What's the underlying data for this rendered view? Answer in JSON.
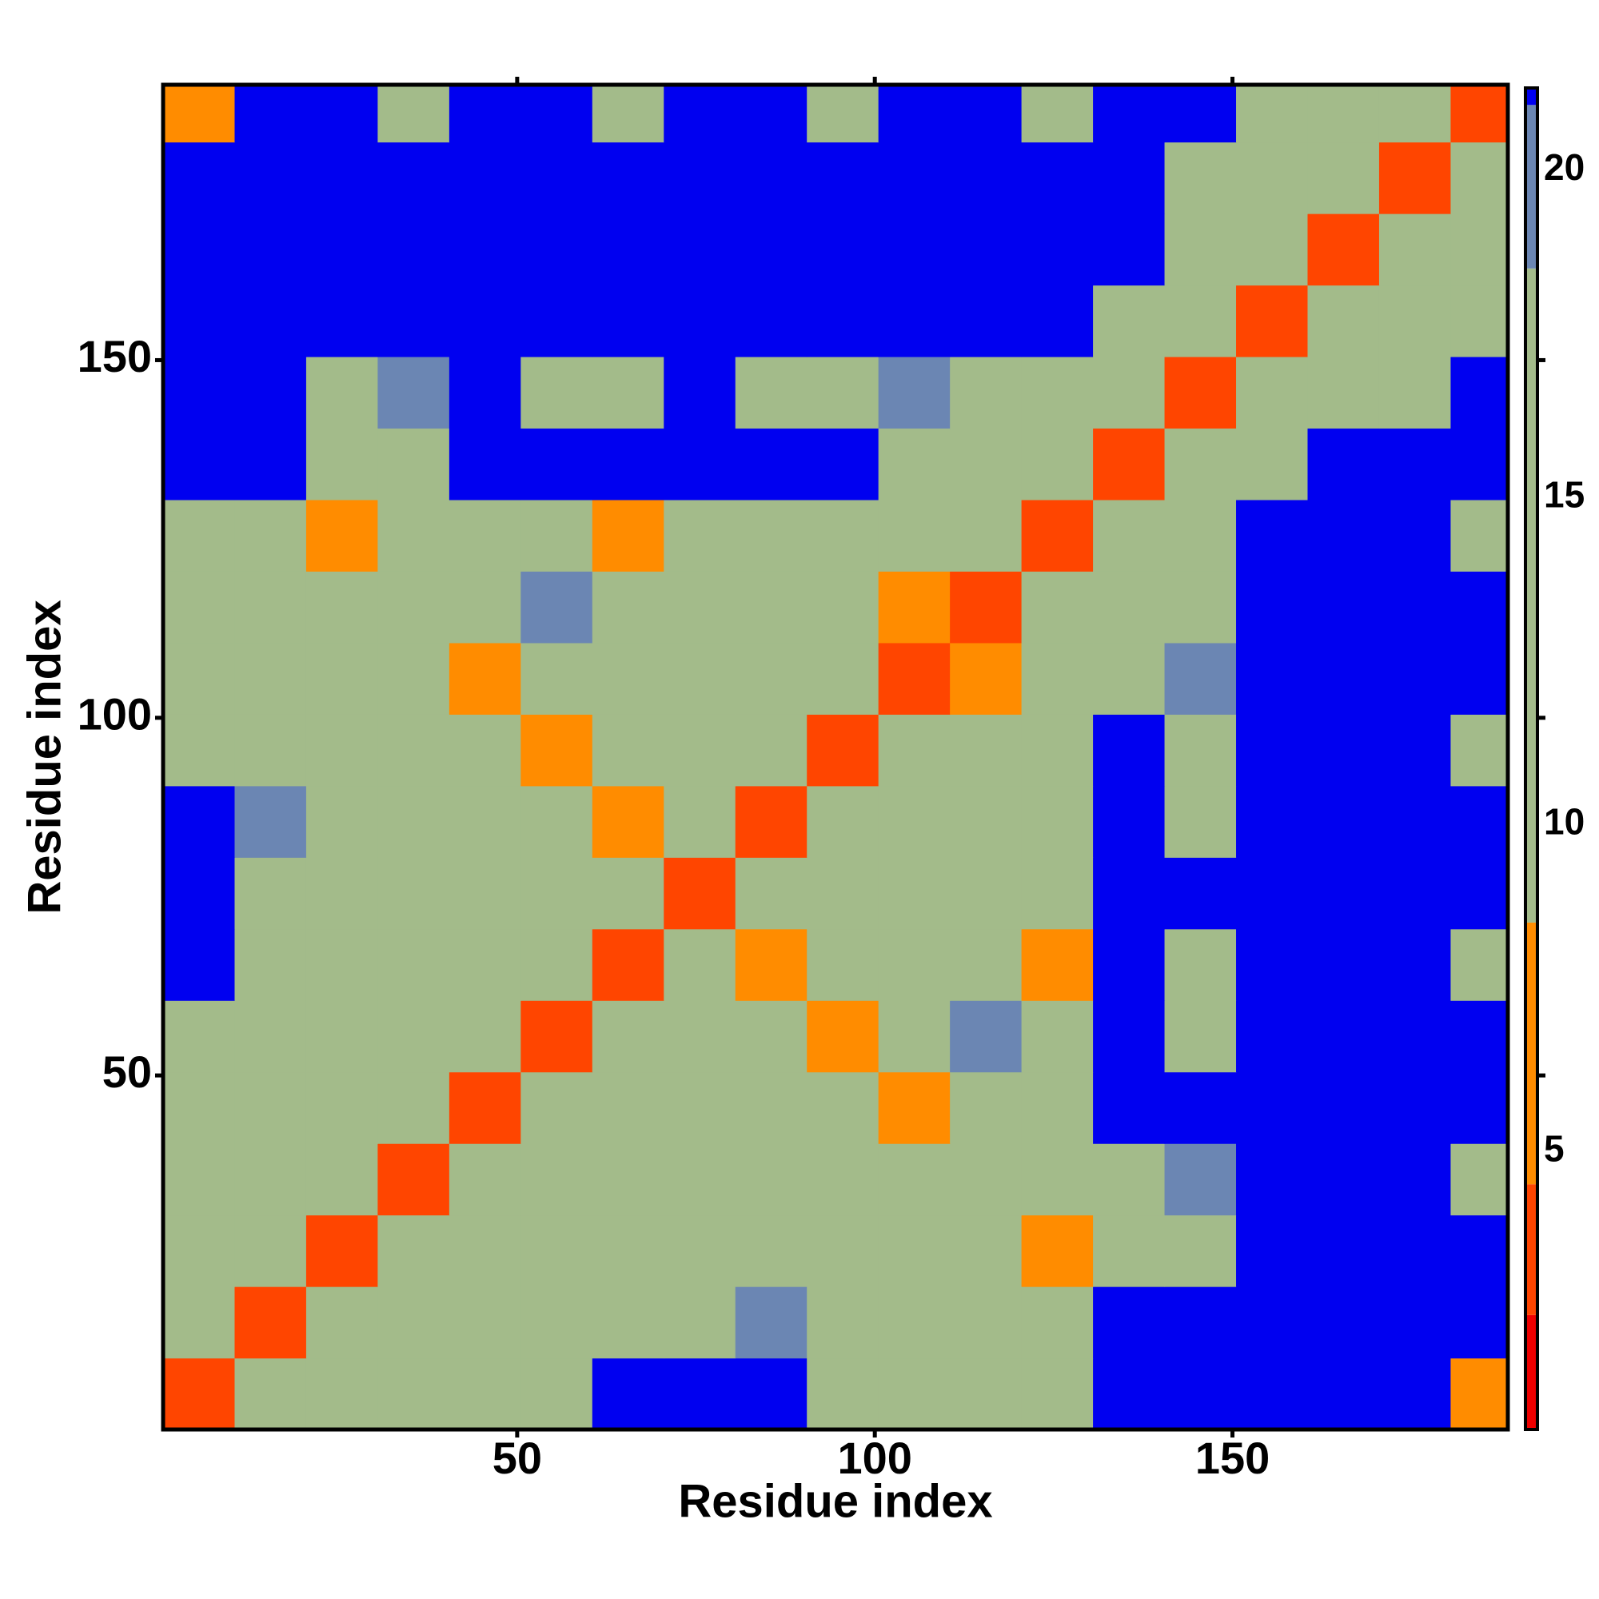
{
  "chart_data": {
    "type": "heatmap",
    "xlabel": "Residue index",
    "ylabel": "Residue index",
    "x_edges": [
      0.5,
      10.5,
      20.5,
      30.5,
      40.5,
      50.5,
      60.5,
      70.5,
      80.5,
      90.5,
      100.5,
      110.5,
      120.5,
      130.5,
      140.5,
      150.5,
      160.5,
      170.5,
      180.5,
      188.5
    ],
    "y_edges": [
      0.5,
      10.5,
      20.5,
      30.5,
      40.5,
      50.5,
      60.5,
      70.5,
      80.5,
      90.5,
      100.5,
      110.5,
      120.5,
      130.5,
      140.5,
      150.5,
      160.5,
      170.5,
      180.5,
      188.5
    ],
    "values": [
      [
        3,
        11,
        13,
        12,
        12,
        15,
        21,
        21,
        21,
        14,
        14,
        15,
        18,
        21,
        21,
        21,
        21,
        21,
        7
      ],
      [
        11,
        3,
        11,
        13,
        14,
        12,
        17,
        18,
        19,
        16,
        15,
        13,
        14,
        21,
        21,
        21,
        21,
        21,
        21
      ],
      [
        13,
        11,
        3,
        11,
        11,
        16,
        14,
        14,
        16,
        17,
        16,
        9,
        6,
        18,
        18,
        21,
        21,
        21,
        21
      ],
      [
        12,
        13,
        11,
        3,
        11,
        11,
        13,
        14,
        15,
        15,
        9,
        12,
        13,
        17,
        19,
        21,
        21,
        21,
        18
      ],
      [
        12,
        14,
        11,
        11,
        3,
        11,
        12,
        16,
        13,
        9,
        7,
        14,
        14,
        21,
        21,
        21,
        21,
        21,
        21
      ],
      [
        15,
        12,
        16,
        11,
        11,
        3,
        11,
        14,
        10,
        7,
        14,
        20,
        13,
        21,
        18,
        21,
        21,
        21,
        21
      ],
      [
        21,
        17,
        14,
        13,
        12,
        11,
        3,
        10,
        6,
        13,
        16,
        12,
        7,
        21,
        18,
        21,
        21,
        21,
        18
      ],
      [
        21,
        18,
        14,
        14,
        16,
        14,
        10,
        3,
        11,
        12,
        13,
        12,
        15,
        21,
        21,
        21,
        21,
        21,
        21
      ],
      [
        21,
        19,
        16,
        15,
        13,
        10,
        6,
        11,
        3,
        11,
        12,
        14,
        13,
        21,
        18,
        21,
        21,
        21,
        21
      ],
      [
        14,
        16,
        17,
        15,
        9,
        7,
        13,
        12,
        11,
        3,
        10,
        12,
        15,
        21,
        18,
        21,
        21,
        21,
        18
      ],
      [
        14,
        15,
        16,
        9,
        7,
        14,
        16,
        13,
        12,
        10,
        3,
        8,
        12,
        18,
        19,
        21,
        21,
        21,
        21
      ],
      [
        15,
        13,
        9,
        12,
        14,
        20,
        12,
        12,
        14,
        12,
        8,
        3,
        11,
        15,
        17,
        21,
        21,
        21,
        21
      ],
      [
        18,
        14,
        6,
        13,
        14,
        13,
        7,
        15,
        13,
        15,
        12,
        11,
        3,
        10,
        16,
        21,
        21,
        21,
        18
      ],
      [
        21,
        21,
        18,
        17,
        21,
        21,
        21,
        21,
        21,
        21,
        18,
        15,
        10,
        3,
        13,
        18,
        21,
        21,
        21
      ],
      [
        21,
        21,
        18,
        19,
        21,
        18,
        18,
        21,
        18,
        18,
        19,
        17,
        16,
        13,
        3,
        11,
        17,
        18,
        21
      ],
      [
        21,
        21,
        21,
        21,
        21,
        21,
        21,
        21,
        21,
        21,
        21,
        21,
        21,
        18,
        11,
        3,
        12,
        13,
        18
      ],
      [
        21,
        21,
        21,
        21,
        21,
        21,
        21,
        21,
        21,
        21,
        21,
        21,
        21,
        21,
        17,
        12,
        3,
        11,
        13
      ],
      [
        21,
        21,
        21,
        21,
        21,
        21,
        21,
        21,
        21,
        21,
        21,
        21,
        21,
        21,
        18,
        13,
        11,
        3,
        11
      ],
      [
        7,
        21,
        21,
        18,
        21,
        21,
        18,
        21,
        21,
        18,
        21,
        21,
        18,
        21,
        21,
        18,
        13,
        11,
        3
      ]
    ],
    "xlim": [
      0.5,
      188.5
    ],
    "ylim": [
      0.5,
      188.5
    ],
    "xticks": [
      50,
      100,
      150
    ],
    "yticks": [
      50,
      100,
      150
    ],
    "clim": [
      0.75,
      21.26
    ],
    "cticks": [
      5,
      10,
      15,
      20
    ],
    "colorscale": [
      {
        "value": 0.75,
        "color": "#ee0000"
      },
      {
        "value": 2.5,
        "color": "#ff4500"
      },
      {
        "value": 4.5,
        "color": "#ff8c00"
      },
      {
        "value": 8.5,
        "color": "#a3bb8a"
      },
      {
        "value": 18.5,
        "color": "#6b86b3"
      },
      {
        "value": 21,
        "color": "#0000f0"
      }
    ]
  }
}
